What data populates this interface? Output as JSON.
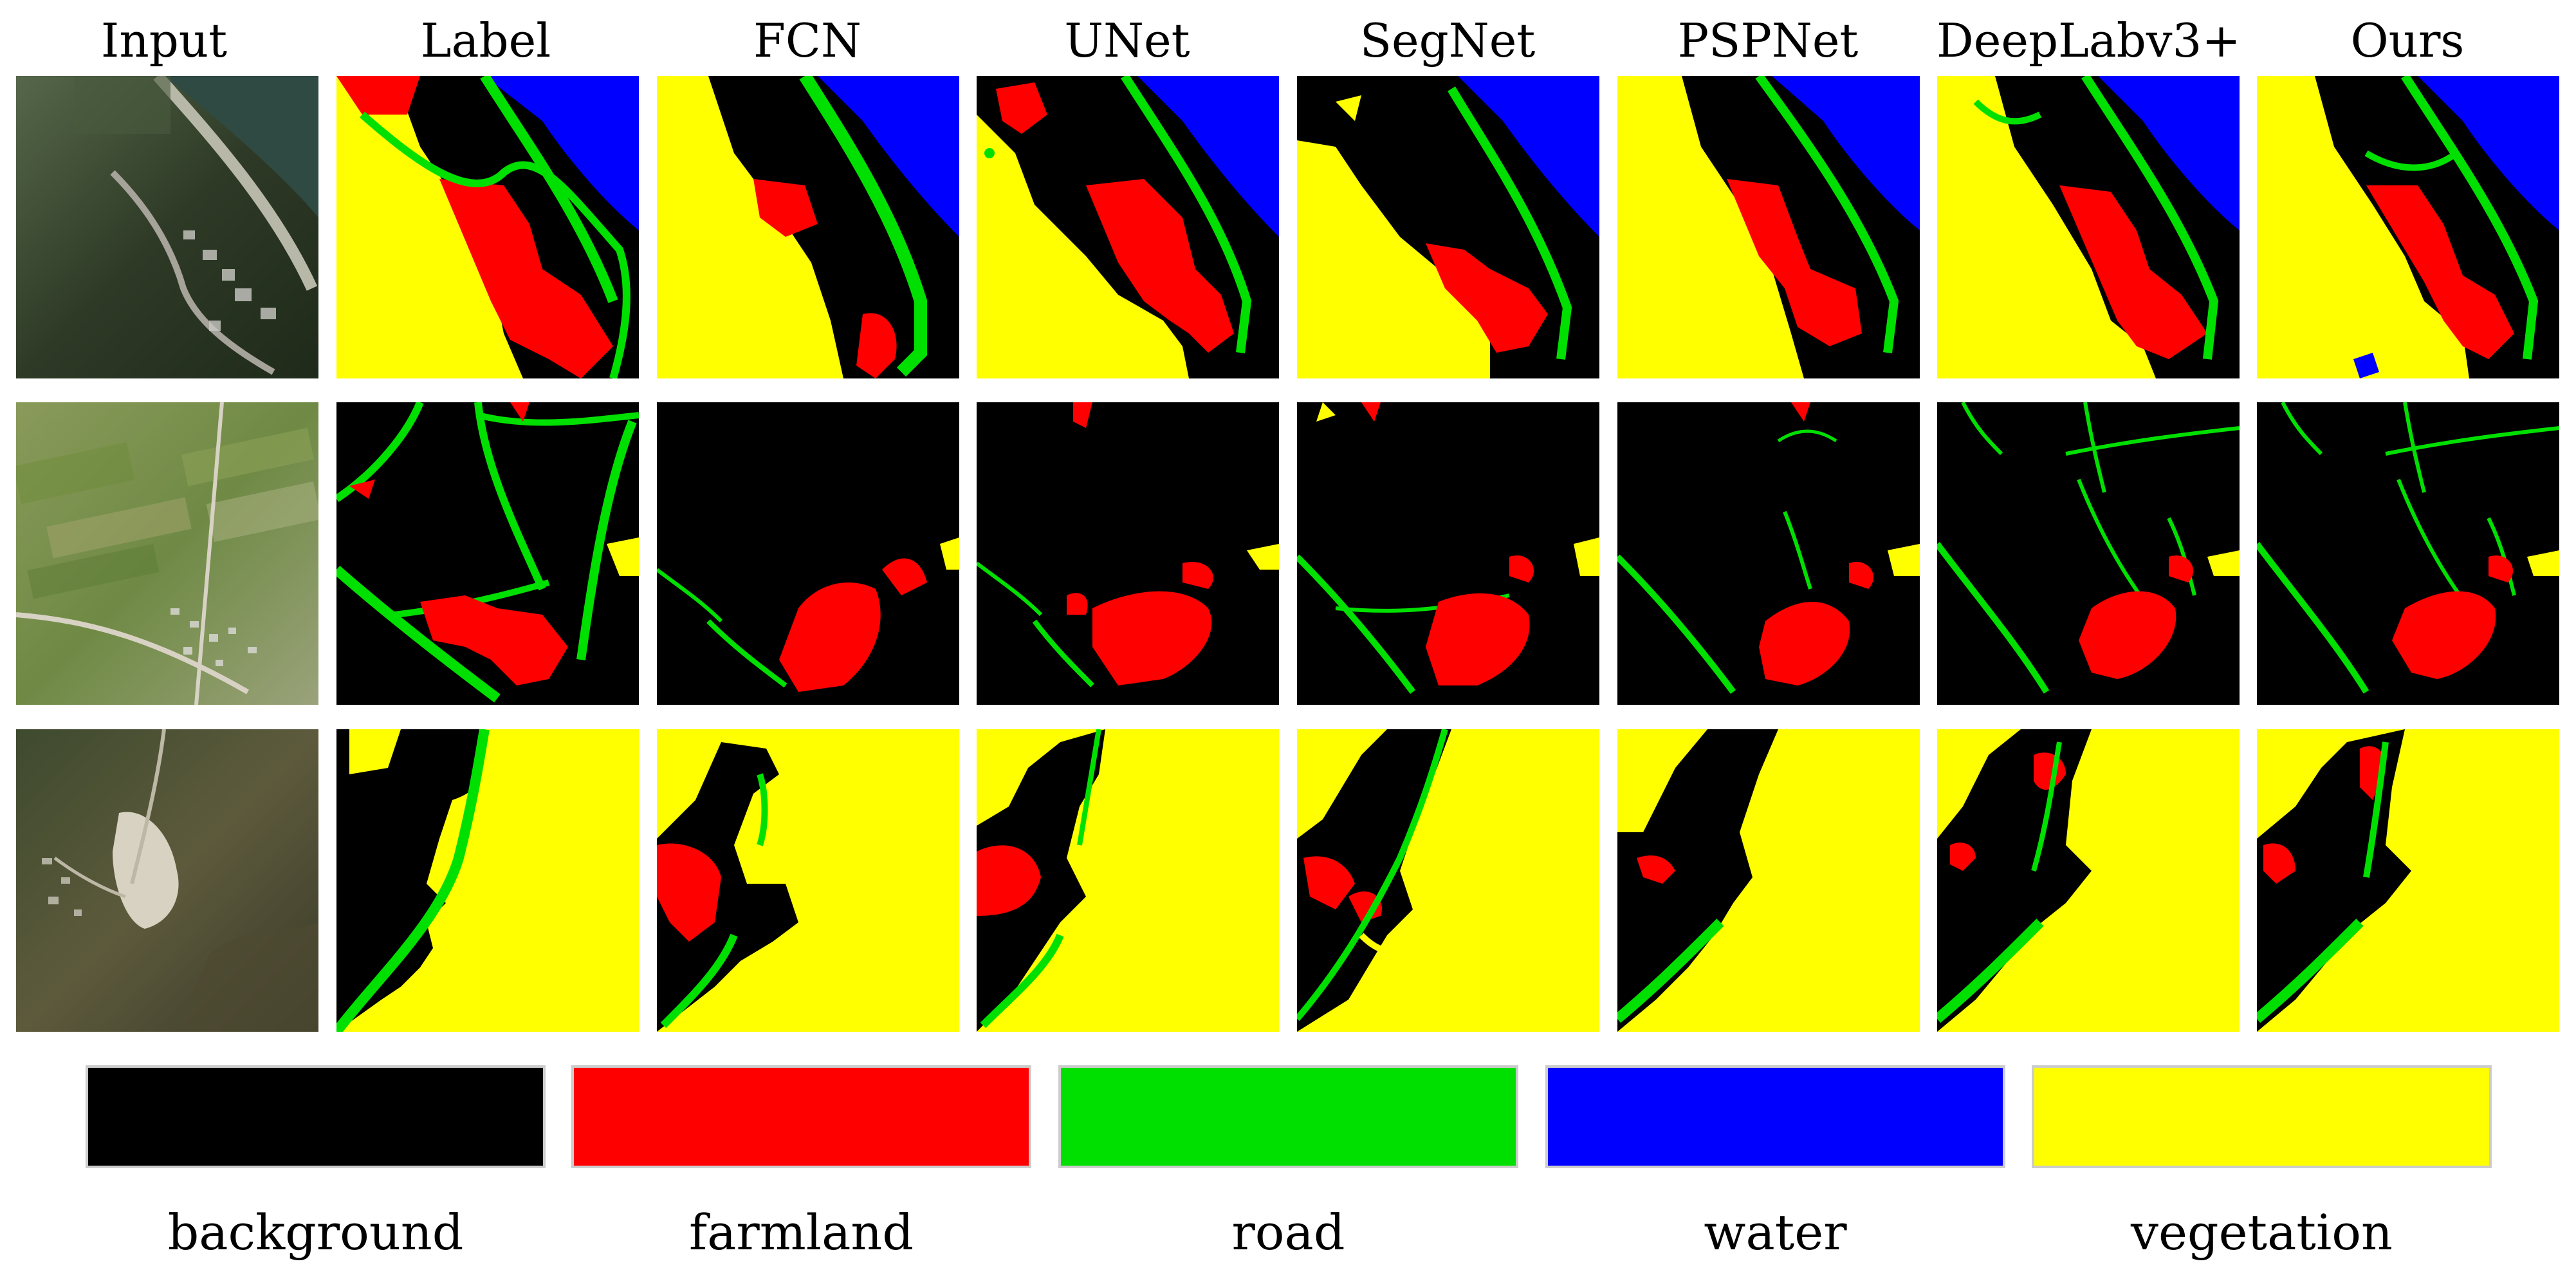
{
  "columns": [
    "Input",
    "Label",
    "FCN",
    "UNet",
    "SegNet",
    "PSPNet",
    "DeepLabv3+",
    "Ours"
  ],
  "legend": [
    {
      "label": "background",
      "color": "#000000"
    },
    {
      "label": "farmland",
      "color": "#ff0000"
    },
    {
      "label": "road",
      "color": "#00e000"
    },
    {
      "label": "water",
      "color": "#0000ff"
    },
    {
      "label": "vegetation",
      "color": "#ffff00"
    }
  ],
  "rows": 3
}
